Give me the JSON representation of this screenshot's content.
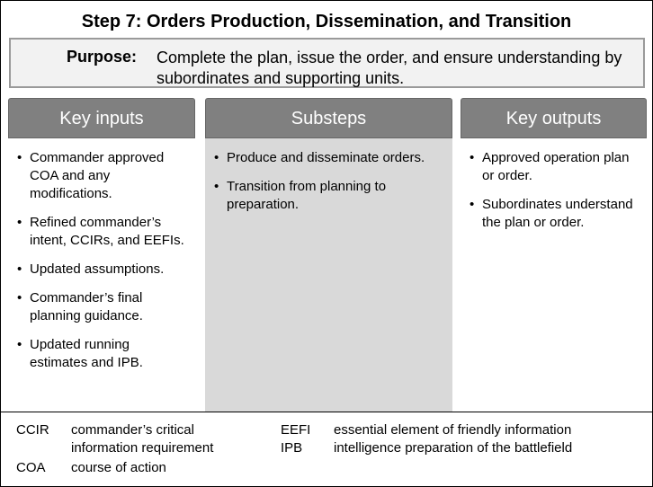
{
  "title": "Step 7: Orders Production, Dissemination, and Transition",
  "purpose": {
    "label": "Purpose:",
    "text": "Complete the plan, issue the order, and ensure understanding by subordinates and supporting units."
  },
  "columns": [
    {
      "heading": "Key inputs",
      "items": [
        "Commander approved COA and any modifications.",
        "Refined commander’s intent, CCIRs, and EEFIs.",
        "Updated assumptions.",
        "Commander’s final planning guidance.",
        "Updated running estimates and IPB."
      ]
    },
    {
      "heading": "Substeps",
      "items": [
        "Produce and disseminate orders.",
        "Transition from planning to preparation."
      ]
    },
    {
      "heading": "Key outputs",
      "items": [
        "Approved operation plan or order.",
        "Subordinates understand the plan or order."
      ]
    }
  ],
  "glossary": [
    {
      "term": "CCIR",
      "definition": "commander’s critical information requirement"
    },
    {
      "term": "COA",
      "definition": "course of action"
    },
    {
      "term": "EEFI",
      "definition": "essential element of friendly information"
    },
    {
      "term": "IPB",
      "definition": "intelligence preparation of the battlefield"
    }
  ]
}
